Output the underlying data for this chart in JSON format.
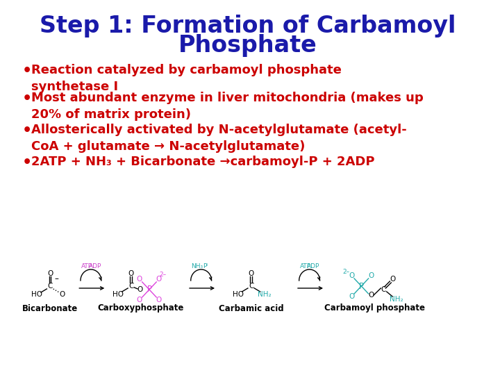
{
  "title_line1": "Step 1: Formation of Carbamoyl",
  "title_line2": "Phosphate",
  "title_color": "#1a1aaa",
  "title_fontsize": 24,
  "bullet_color": "#cc0000",
  "bullet_fontsize": 13,
  "bullets": [
    "Reaction catalyzed by carbamoyl phosphate\nsynthetase I",
    "Most abundant enzyme in liver mitochondria (makes up\n20% of matrix protein)",
    "Allosterically activated by N-acetylglutamate (acetyl-\nCoA + glutamate → N-acetylglutamate)",
    "2ATP + NH₃ + Bicarbonate →carbamoyl-P + 2ADP"
  ],
  "bg_color": "#ffffff",
  "diagram_labels": [
    "Bicarbonate",
    "Carboxyphosphate",
    "Carbamic acid",
    "Carbamoyl phosphate"
  ],
  "atp_adp_color": "#cc44cc",
  "nh3_pi_color": "#22aaaa",
  "atp_adp_color2": "#22aaaa",
  "phosphate_color": "#dd44dd",
  "phosphate_color2": "#22aaaa",
  "bond_color": "#000000",
  "label_fontsize": 8.5
}
